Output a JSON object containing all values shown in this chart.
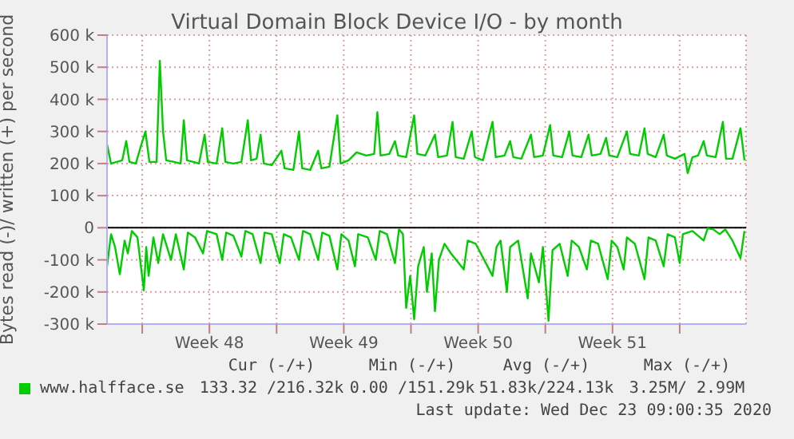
{
  "chart_data": {
    "type": "line",
    "title": "Virtual Domain Block Device I/O - by month",
    "ylabel": "Bytes read (-)/ written (+) per second",
    "xlim": [
      "2020-11-21T04:00",
      "2020-12-24T11:00"
    ],
    "xticks": [
      {
        "value": "2020-11-23",
        "label": null
      },
      {
        "value": "2020-11-26T12:00",
        "label": "Week 48"
      },
      {
        "value": "2020-11-30",
        "label": null
      },
      {
        "value": "2020-12-03T12:00",
        "label": "Week 49"
      },
      {
        "value": "2020-12-07",
        "label": null
      },
      {
        "value": "2020-12-10T12:00",
        "label": "Week 50"
      },
      {
        "value": "2020-12-14",
        "label": null
      },
      {
        "value": "2020-12-17T12:00",
        "label": "Week 51"
      },
      {
        "value": "2020-12-21",
        "label": null
      }
    ],
    "ylim": [
      -300000,
      600000
    ],
    "yticks": [
      {
        "value": -300000,
        "label": "-300 k"
      },
      {
        "value": -200000,
        "label": "-200 k"
      },
      {
        "value": -100000,
        "label": "-100 k"
      },
      0,
      {
        "value": 100000,
        "label": "100 k"
      },
      {
        "value": 200000,
        "label": "200 k"
      },
      {
        "value": 300000,
        "label": "300 k"
      },
      {
        "value": 400000,
        "label": "400 k"
      },
      {
        "value": 500000,
        "label": "500 k"
      },
      {
        "value": 600000,
        "label": "600 k"
      }
    ],
    "grid": true,
    "legend": "bottom",
    "marker": "none",
    "line_style": "solid",
    "ref_lines": [
      {
        "axis": "y",
        "value": 0,
        "color": "#000000"
      }
    ],
    "series": [
      {
        "name": "www.halfface.se",
        "color": "#00cc00",
        "x": [
          "2020-11-21T04:00",
          "2020-11-21T09:00",
          "2020-11-21T16:00",
          "2020-11-21T23:00",
          "2020-11-22T04:00",
          "2020-11-22T08:00",
          "2020-11-22T16:00",
          "2020-11-22T23:00",
          "2020-11-23T04:00",
          "2020-11-23T09:00",
          "2020-11-23T18:00",
          "2020-11-23T22:00",
          "2020-11-24T02:00",
          "2020-11-24T06:00",
          "2020-11-24T16:00",
          "2020-11-25T00:00",
          "2020-11-25T04:00",
          "2020-11-25T08:00",
          "2020-11-25T16:00",
          "2020-11-25T23:00",
          "2020-11-26T06:00",
          "2020-11-26T10:00",
          "2020-11-26T21:00",
          "2020-11-27T04:00",
          "2020-11-27T08:00",
          "2020-11-27T18:00",
          "2020-11-28T04:00",
          "2020-11-28T12:00",
          "2020-11-28T16:00",
          "2020-11-28T23:00",
          "2020-11-29T04:00",
          "2020-11-29T08:00",
          "2020-11-29T18:00",
          "2020-11-30T06:00",
          "2020-11-30T10:00",
          "2020-11-30T21:00",
          "2020-12-01T04:00",
          "2020-12-01T08:00",
          "2020-12-01T18:00",
          "2020-12-02T04:00",
          "2020-12-02T08:00",
          "2020-12-02T18:00",
          "2020-12-03T04:00",
          "2020-12-03T08:00",
          "2020-12-03T18:00",
          "2020-12-04T04:00",
          "2020-12-04T16:00",
          "2020-12-05T02:00",
          "2020-12-05T06:00",
          "2020-12-05T10:00",
          "2020-12-05T21:00",
          "2020-12-06T04:00",
          "2020-12-06T08:00",
          "2020-12-06T18:00",
          "2020-12-07T04:00",
          "2020-12-07T08:00",
          "2020-12-07T18:00",
          "2020-12-08T06:00",
          "2020-12-08T10:00",
          "2020-12-08T21:00",
          "2020-12-09T04:00",
          "2020-12-09T08:00",
          "2020-12-09T18:00",
          "2020-12-10T04:00",
          "2020-12-10T08:00",
          "2020-12-10T18:00",
          "2020-12-11T06:00",
          "2020-12-11T10:00",
          "2020-12-11T21:00",
          "2020-12-12T04:00",
          "2020-12-12T08:00",
          "2020-12-12T18:00",
          "2020-12-13T06:00",
          "2020-12-13T10:00",
          "2020-12-13T21:00",
          "2020-12-14T06:00",
          "2020-12-14T10:00",
          "2020-12-14T21:00",
          "2020-12-15T06:00",
          "2020-12-15T10:00",
          "2020-12-15T21:00",
          "2020-12-16T06:00",
          "2020-12-16T10:00",
          "2020-12-16T21:00",
          "2020-12-17T04:00",
          "2020-12-17T08:00",
          "2020-12-17T18:00",
          "2020-12-18T06:00",
          "2020-12-18T10:00",
          "2020-12-18T21:00",
          "2020-12-19T04:00",
          "2020-12-19T08:00",
          "2020-12-19T18:00",
          "2020-12-20T04:00",
          "2020-12-20T08:00",
          "2020-12-20T18:00",
          "2020-12-21T06:00",
          "2020-12-21T10:00",
          "2020-12-21T16:00",
          "2020-12-21T23:00",
          "2020-12-22T06:00",
          "2020-12-22T10:00",
          "2020-12-22T21:00",
          "2020-12-23T06:00",
          "2020-12-23T10:00",
          "2020-12-23T18:00",
          "2020-12-24T04:00",
          "2020-12-24T09:00"
        ],
        "values": [
          260000,
          200000,
          205000,
          210000,
          270000,
          205000,
          200000,
          260000,
          300000,
          205000,
          205000,
          520000,
          300000,
          210000,
          205000,
          200000,
          335000,
          210000,
          205000,
          200000,
          290000,
          205000,
          200000,
          310000,
          205000,
          200000,
          205000,
          335000,
          210000,
          215000,
          290000,
          200000,
          195000,
          240000,
          185000,
          180000,
          300000,
          185000,
          180000,
          240000,
          185000,
          190000,
          350000,
          200000,
          210000,
          235000,
          225000,
          230000,
          360000,
          225000,
          230000,
          270000,
          225000,
          220000,
          350000,
          230000,
          225000,
          290000,
          220000,
          225000,
          330000,
          220000,
          215000,
          300000,
          220000,
          210000,
          330000,
          220000,
          225000,
          270000,
          220000,
          215000,
          290000,
          220000,
          225000,
          320000,
          225000,
          220000,
          300000,
          225000,
          220000,
          290000,
          225000,
          230000,
          280000,
          225000,
          220000,
          300000,
          230000,
          225000,
          310000,
          230000,
          220000,
          290000,
          225000,
          215000,
          230000,
          170000,
          220000,
          225000,
          270000,
          225000,
          220000,
          330000,
          215000,
          215000,
          310000,
          210000
        ]
      },
      {
        "color": "#00cc00",
        "x": [
          "2020-11-21T04:00",
          "2020-11-21T09:00",
          "2020-11-21T14:00",
          "2020-11-21T20:00",
          "2020-11-22T02:00",
          "2020-11-22T06:00",
          "2020-11-22T11:00",
          "2020-11-22T18:00",
          "2020-11-23T02:00",
          "2020-11-23T05:00",
          "2020-11-23T08:00",
          "2020-11-23T14:00",
          "2020-11-23T20:00",
          "2020-11-24T02:00",
          "2020-11-24T12:00",
          "2020-11-24T18:00",
          "2020-11-25T04:00",
          "2020-11-25T09:00",
          "2020-11-25T18:00",
          "2020-11-26T04:00",
          "2020-11-26T09:00",
          "2020-11-26T21:00",
          "2020-11-27T04:00",
          "2020-11-27T09:00",
          "2020-11-27T18:00",
          "2020-11-28T04:00",
          "2020-11-28T09:00",
          "2020-11-28T18:00",
          "2020-11-29T04:00",
          "2020-11-29T09:00",
          "2020-11-29T18:00",
          "2020-11-30T04:00",
          "2020-11-30T09:00",
          "2020-11-30T18:00",
          "2020-12-01T04:00",
          "2020-12-01T09:00",
          "2020-12-01T18:00",
          "2020-12-02T04:00",
          "2020-12-02T09:00",
          "2020-12-02T18:00",
          "2020-12-03T04:00",
          "2020-12-03T09:00",
          "2020-12-03T18:00",
          "2020-12-04T02:00",
          "2020-12-04T06:00",
          "2020-12-04T18:00",
          "2020-12-05T04:00",
          "2020-12-05T09:00",
          "2020-12-05T18:00",
          "2020-12-06T04:00",
          "2020-12-06T09:00",
          "2020-12-06T14:00",
          "2020-12-06T18:00",
          "2020-12-06T23:00",
          "2020-12-07T04:00",
          "2020-12-07T09:00",
          "2020-12-07T16:00",
          "2020-12-07T20:00",
          "2020-12-08T02:00",
          "2020-12-08T06:00",
          "2020-12-08T11:00",
          "2020-12-08T18:00",
          "2020-12-09T02:00",
          "2020-12-09T18:00",
          "2020-12-09T23:00",
          "2020-12-10T09:00",
          "2020-12-11T06:00",
          "2020-12-11T11:00",
          "2020-12-11T16:00",
          "2020-12-12T00:00",
          "2020-12-12T04:00",
          "2020-12-12T14:00",
          "2020-12-13T02:00",
          "2020-12-13T06:00",
          "2020-12-13T16:00",
          "2020-12-13T21:00",
          "2020-12-14T04:00",
          "2020-12-14T09:00",
          "2020-12-14T18:00",
          "2020-12-15T04:00",
          "2020-12-15T09:00",
          "2020-12-15T18:00",
          "2020-12-16T04:00",
          "2020-12-16T09:00",
          "2020-12-16T18:00",
          "2020-12-17T06:00",
          "2020-12-17T11:00",
          "2020-12-17T18:00",
          "2020-12-18T02:00",
          "2020-12-18T06:00",
          "2020-12-18T16:00",
          "2020-12-19T04:00",
          "2020-12-19T09:00",
          "2020-12-19T18:00",
          "2020-12-20T04:00",
          "2020-12-20T09:00",
          "2020-12-20T18:00",
          "2020-12-21T00:00",
          "2020-12-21T04:00",
          "2020-12-21T16:00",
          "2020-12-22T06:00",
          "2020-12-22T11:00",
          "2020-12-22T18:00",
          "2020-12-23T02:00",
          "2020-12-23T09:00",
          "2020-12-23T18:00",
          "2020-12-24T04:00",
          "2020-12-24T09:00"
        ],
        "values": [
          -120000,
          -20000,
          -60000,
          -145000,
          -40000,
          -80000,
          -10000,
          -30000,
          -195000,
          -60000,
          -150000,
          -30000,
          -110000,
          -20000,
          -100000,
          -20000,
          -130000,
          -15000,
          -30000,
          -80000,
          -10000,
          -20000,
          -100000,
          -15000,
          -25000,
          -90000,
          -10000,
          -20000,
          -110000,
          -15000,
          -20000,
          -110000,
          -20000,
          -30000,
          -100000,
          -10000,
          -20000,
          -100000,
          -15000,
          -25000,
          -130000,
          -20000,
          -40000,
          -120000,
          -20000,
          -30000,
          -100000,
          -10000,
          -20000,
          -110000,
          -5000,
          -20000,
          -250000,
          -150000,
          -285000,
          -120000,
          -60000,
          -200000,
          -80000,
          -260000,
          -100000,
          -50000,
          -80000,
          -130000,
          -40000,
          -50000,
          -150000,
          -60000,
          -40000,
          -200000,
          -60000,
          -40000,
          -220000,
          -80000,
          -170000,
          -60000,
          -290000,
          -70000,
          -50000,
          -150000,
          -40000,
          -60000,
          -130000,
          -40000,
          -50000,
          -160000,
          -40000,
          -60000,
          -130000,
          -30000,
          -50000,
          -160000,
          -30000,
          -40000,
          -120000,
          -20000,
          -30000,
          -110000,
          -20000,
          -10000,
          -40000,
          -2000,
          -5000,
          -20000,
          -5000,
          -40000,
          -95000,
          -10000
        ]
      }
    ],
    "annotations": [
      "Cur (-/+)",
      "Min (-/+)",
      "Avg (-/+)",
      "Max (-/+)",
      "133.32 /216.32k",
      "0.00 /151.29k",
      "51.83k/224.13k",
      "3.25M/ 2.99M",
      "Last update: Wed Dec 23 09:00:35 2020"
    ]
  }
}
